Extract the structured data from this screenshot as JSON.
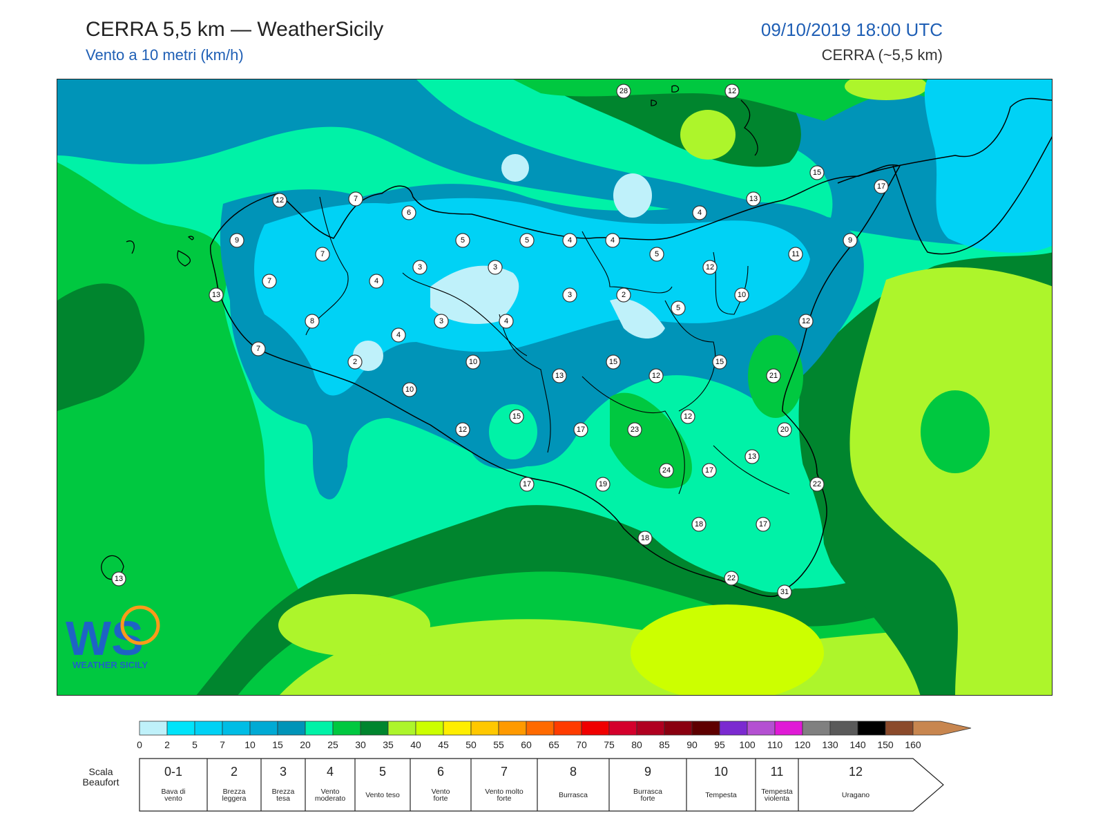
{
  "header": {
    "title": "CERRA 5,5 km — WeatherSicily",
    "subtitle": "Vento a 10 metri (km/h)",
    "datetime": "09/10/2019 18:00 UTC",
    "model": "CERRA (~5,5 km)"
  },
  "logo": {
    "letters": "WS",
    "name": "WEATHER SICILY"
  },
  "colors": {
    "sea_far": "#0fa3c4",
    "light_blue": "#bff1fa",
    "cyan": "#00d2f5",
    "teal": "#0094b8",
    "aqua": "#00f2a7",
    "green": "#00c840",
    "dark_green": "#00852e",
    "lime": "#adf52b",
    "yellow_lime": "#ccff00",
    "title_blue": "#1f5fb5"
  },
  "wind_labels": [
    {
      "v": "28"
    },
    {
      "v": "12"
    },
    {
      "v": "15"
    },
    {
      "v": "17"
    },
    {
      "v": "12"
    },
    {
      "v": "7"
    },
    {
      "v": "6"
    },
    {
      "v": "13"
    },
    {
      "v": "4"
    },
    {
      "v": "9"
    },
    {
      "v": "5"
    },
    {
      "v": "5"
    },
    {
      "v": "4"
    },
    {
      "v": "4"
    },
    {
      "v": "5"
    },
    {
      "v": "9"
    },
    {
      "v": "7"
    },
    {
      "v": "11"
    },
    {
      "v": "3"
    },
    {
      "v": "3"
    },
    {
      "v": "12"
    },
    {
      "v": "7"
    },
    {
      "v": "4"
    },
    {
      "v": "13"
    },
    {
      "v": "3"
    },
    {
      "v": "2"
    },
    {
      "v": "10"
    },
    {
      "v": "5"
    },
    {
      "v": "8"
    },
    {
      "v": "3"
    },
    {
      "v": "4"
    },
    {
      "v": "12"
    },
    {
      "v": "4"
    },
    {
      "v": "7"
    },
    {
      "v": "2"
    },
    {
      "v": "10"
    },
    {
      "v": "15"
    },
    {
      "v": "15"
    },
    {
      "v": "13"
    },
    {
      "v": "12"
    },
    {
      "v": "21"
    },
    {
      "v": "10"
    },
    {
      "v": "15"
    },
    {
      "v": "12"
    },
    {
      "v": "12"
    },
    {
      "v": "17"
    },
    {
      "v": "23"
    },
    {
      "v": "20"
    },
    {
      "v": "13"
    },
    {
      "v": "24"
    },
    {
      "v": "17"
    },
    {
      "v": "17"
    },
    {
      "v": "19"
    },
    {
      "v": "22"
    },
    {
      "v": "18"
    },
    {
      "v": "17"
    },
    {
      "v": "18"
    },
    {
      "v": "13"
    },
    {
      "v": "22"
    },
    {
      "v": "31"
    }
  ],
  "colorbar": {
    "ticks": [
      "0",
      "2",
      "5",
      "7",
      "10",
      "15",
      "20",
      "25",
      "30",
      "35",
      "40",
      "45",
      "50",
      "55",
      "60",
      "65",
      "70",
      "75",
      "80",
      "85",
      "90",
      "95",
      "100",
      "110",
      "120",
      "130",
      "140",
      "150",
      "160"
    ],
    "colors": [
      "#bff1fa",
      "#00e4fa",
      "#00d2f5",
      "#00bde5",
      "#00aad4",
      "#0094b8",
      "#00f2a7",
      "#00c840",
      "#00852e",
      "#adf52b",
      "#ccff00",
      "#ffee00",
      "#ffc800",
      "#ff9a00",
      "#ff6a00",
      "#ff3c00",
      "#f00000",
      "#d4002c",
      "#b00020",
      "#8a0010",
      "#5e0000",
      "#7b2ad0",
      "#b450d2",
      "#e01ad6",
      "#808080",
      "#5a5a5a",
      "#000000",
      "#8b4a2b",
      "#c8864f"
    ]
  },
  "beaufort": {
    "title": "Scala Beaufort",
    "cells": [
      {
        "num": "0-1",
        "desc": "Bava di vento"
      },
      {
        "num": "2",
        "desc": "Brezza leggera"
      },
      {
        "num": "3",
        "desc": "Brezza tesa"
      },
      {
        "num": "4",
        "desc": "Vento moderato"
      },
      {
        "num": "5",
        "desc": "Vento teso"
      },
      {
        "num": "6",
        "desc": "Vento forte"
      },
      {
        "num": "7",
        "desc": "Vento molto forte"
      },
      {
        "num": "8",
        "desc": "Burrasca"
      },
      {
        "num": "9",
        "desc": "Burrasca forte"
      },
      {
        "num": "10",
        "desc": "Tempesta"
      },
      {
        "num": "11",
        "desc": "Tempesta violenta"
      },
      {
        "num": "12",
        "desc": "Uragano"
      }
    ]
  }
}
